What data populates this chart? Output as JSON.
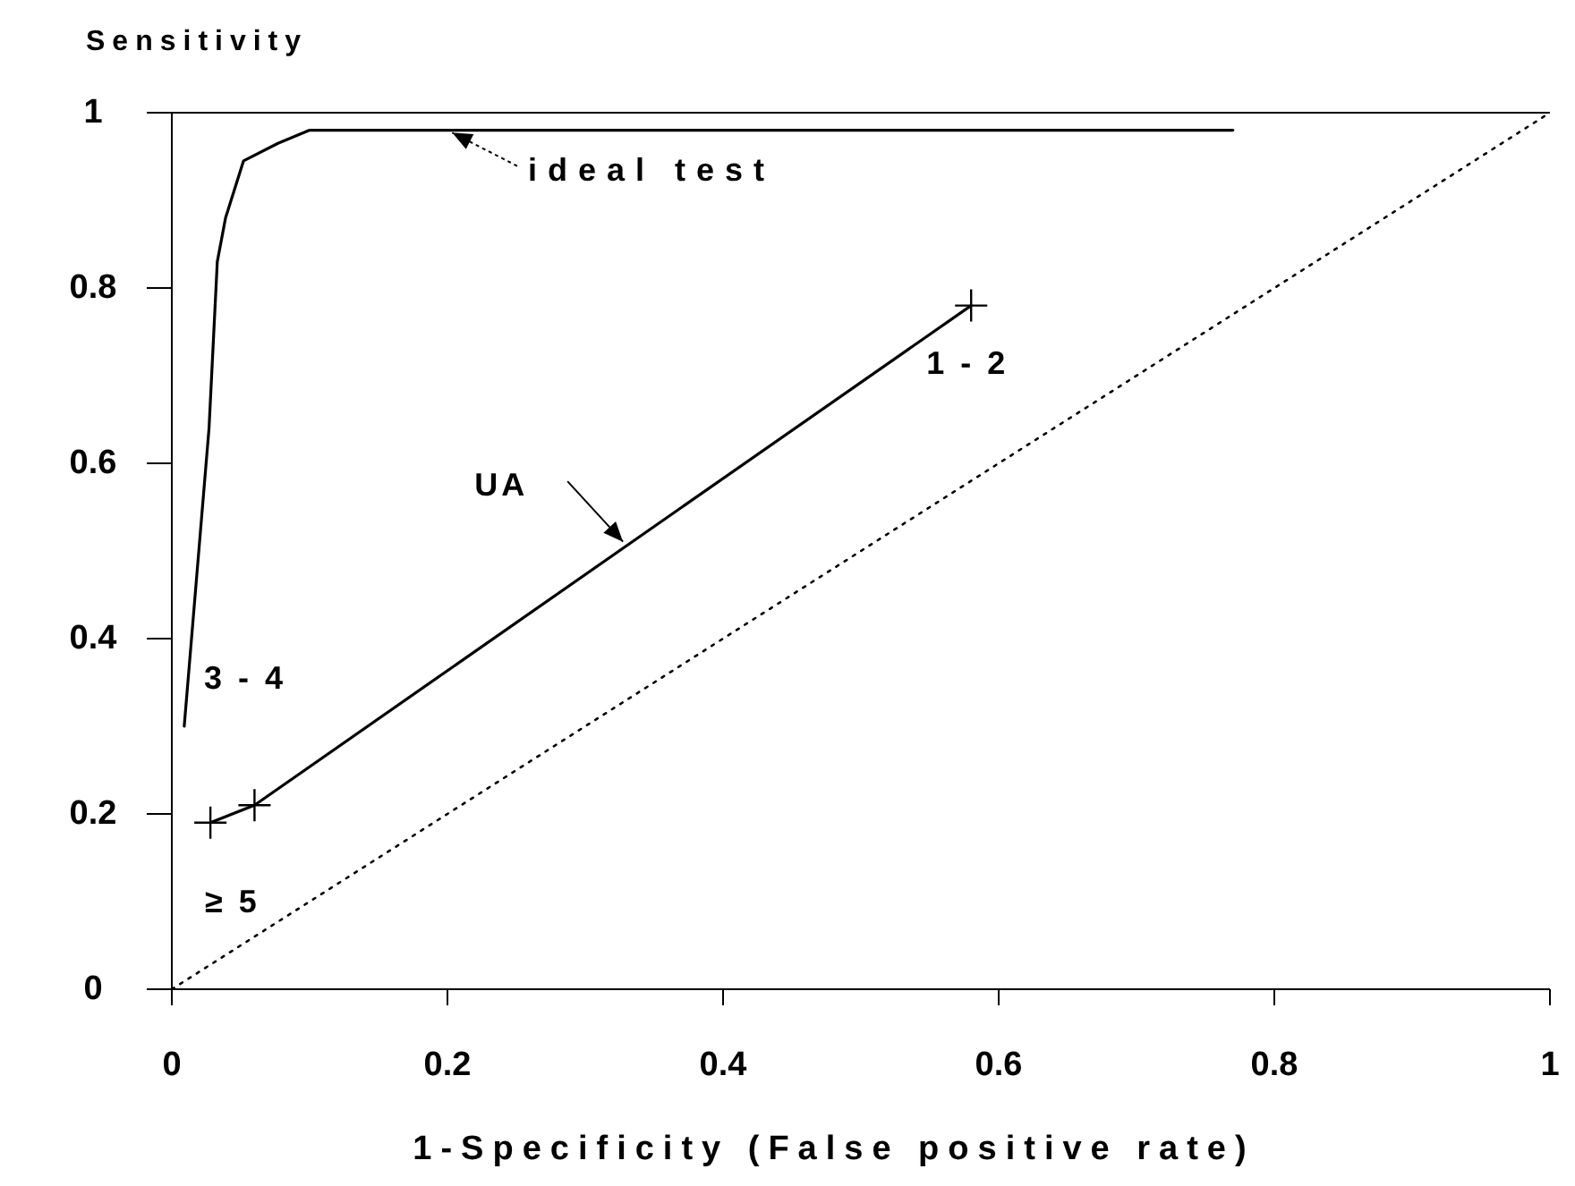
{
  "chart_data": {
    "type": "line",
    "ylabel": "Sensitivity",
    "xlabel": "1-Specificity (False positive rate)",
    "xlim": [
      0,
      1
    ],
    "ylim": [
      0,
      1
    ],
    "xticks": [
      0,
      0.2,
      0.4,
      0.6,
      0.8,
      1
    ],
    "yticks": [
      0,
      0.2,
      0.4,
      0.6,
      0.8,
      1
    ],
    "grid": false,
    "series": [
      {
        "color": "#000000",
        "marker": "none",
        "line_style": "solid",
        "x": [
          0.009,
          0.027,
          0.033,
          0.039,
          0.052,
          0.077,
          0.1,
          0.77
        ],
        "values": [
          0.3,
          0.64,
          0.83,
          0.88,
          0.945,
          0.965,
          0.98,
          0.98
        ]
      },
      {
        "color": "#000000",
        "marker": "cross",
        "line_style": "solid",
        "x": [
          0.028,
          0.06,
          0.58
        ],
        "values": [
          0.19,
          0.21,
          0.78
        ]
      },
      {
        "color": "#000000",
        "marker": "none",
        "line_style": "dotted",
        "x": [
          0,
          1
        ],
        "values": [
          0,
          1
        ]
      }
    ],
    "annotations": [
      {
        "text": "ideal test",
        "x": 0.2,
        "y": 0.98
      },
      {
        "text": "UA",
        "x": 0.33,
        "y": 0.506
      },
      {
        "text": "1 - 2",
        "x": 0.58,
        "y": 0.78
      },
      "3 - 4",
      {
        "text": "≥ 5",
        "x": 0.028,
        "y": 0.19
      }
    ]
  }
}
